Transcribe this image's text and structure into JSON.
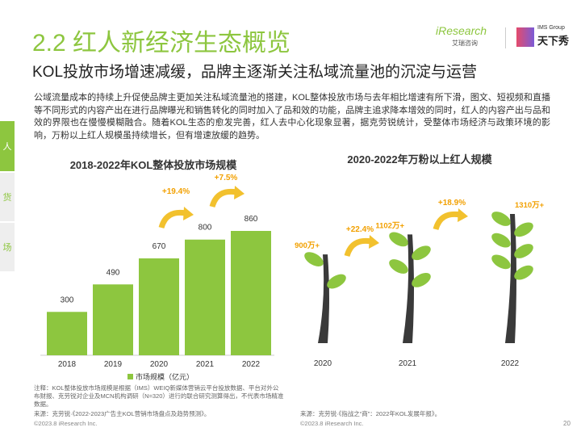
{
  "header": {
    "title": "2.2 红人新经济生态概览",
    "subtitle": "KOL投放市场增速减缓，品牌主逐渐关注私域流量池的沉淀与运营",
    "logos": [
      "iResearch",
      "艾瑞咨询",
      "IMS Group",
      "天下秀"
    ]
  },
  "side_tabs": [
    "人",
    "货",
    "场"
  ],
  "body": "公域流量成本的持续上升促使品牌主更加关注私域流量池的搭建，KOL整体投放市场与去年相比增速有所下滑，图文、短视频和直播等不同形式的内容产出在进行品牌曝光和销售转化的同时加入了品和效的功能，品牌主追求降本增效的同时，红人的内容产出与品和效的界限也在慢慢模糊融合。随着KOL生态的愈发完善，红人去中心化现象显著，据克劳锐统计，受整体市场经济与政策环境的影响，万粉以上红人规模虽持续增长，但有增速放缓的趋势。",
  "chart_data": [
    {
      "type": "bar",
      "title": "2018-2022年KOL整体投放市场规模",
      "categories": [
        "2018",
        "2019",
        "2020",
        "2021",
        "2022"
      ],
      "series": [
        {
          "name": "市场规模（亿元）",
          "color": "#8dc63f",
          "values": [
            300,
            490,
            670,
            800,
            860
          ]
        }
      ],
      "annotations": [
        "+19.4%",
        "+7.5%"
      ],
      "legend": "bottom"
    },
    {
      "type": "pictorial",
      "title": "2020-2022年万粉以上红人规模",
      "categories": [
        "2020",
        "2021",
        "2022"
      ],
      "values": [
        900,
        1102,
        1310
      ],
      "value_labels": [
        "900万+",
        "1102万+",
        "1310万+"
      ],
      "color": "#8dc63f",
      "annotations": [
        "+22.4%",
        "+18.9%"
      ]
    }
  ],
  "notes": {
    "left": "注释：KOL整体投放市场规模是根据（IMS）WEIQ新媒体营销云平台投放数据、平台对外公布财报、克劳锐对企业及MCN机构调研（N=320）进行的联合研究测算得出，不代表市场精准数据。",
    "left_source": "来源：克劳锐·《2022-2023广告主KOL营销市场盘点及趋势预测》。",
    "right_source": "来源：克劳锐·《指战之“商”：2022年KOL发展年报》。"
  },
  "footer": {
    "left": "©2023.8 iResearch Inc.",
    "right": "©2023.8 iResearch Inc.",
    "page": "20"
  }
}
